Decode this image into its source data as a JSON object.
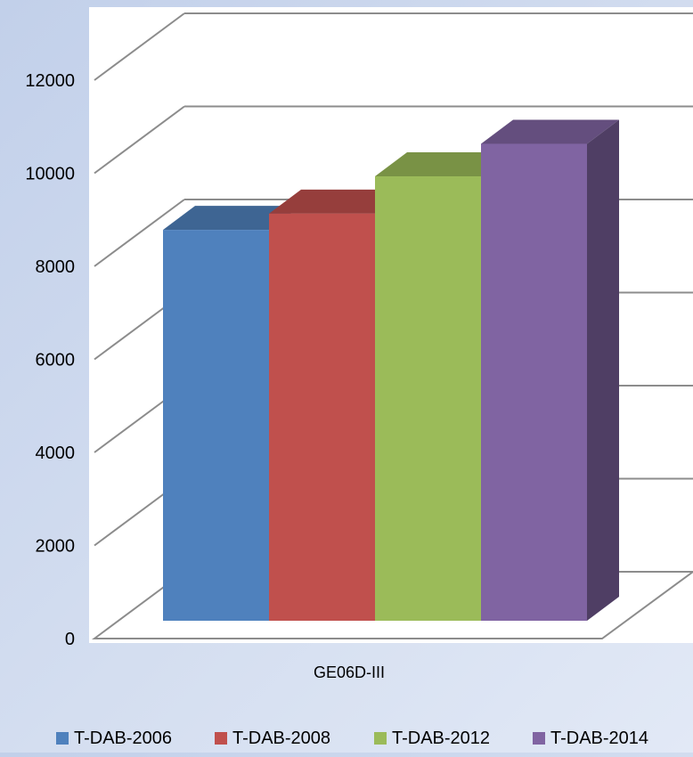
{
  "chart_data": {
    "type": "bar",
    "categories": [
      "GE06D-III"
    ],
    "series": [
      {
        "name": "T-DAB-2006",
        "values": [
          8400
        ],
        "color": "#4f81bd"
      },
      {
        "name": "T-DAB-2008",
        "values": [
          8750
        ],
        "color": "#c0504d"
      },
      {
        "name": "T-DAB-2012",
        "values": [
          9550
        ],
        "color": "#9bbb59"
      },
      {
        "name": "T-DAB-2014",
        "values": [
          10250
        ],
        "color": "#8064a2"
      }
    ],
    "y_ticks": [
      "0",
      "2000",
      "4000",
      "6000",
      "8000",
      "10000",
      "12000"
    ],
    "ylim": [
      0,
      12000
    ],
    "grid": true,
    "legend_position": "bottom",
    "title": "",
    "xlabel": "",
    "ylabel": ""
  }
}
